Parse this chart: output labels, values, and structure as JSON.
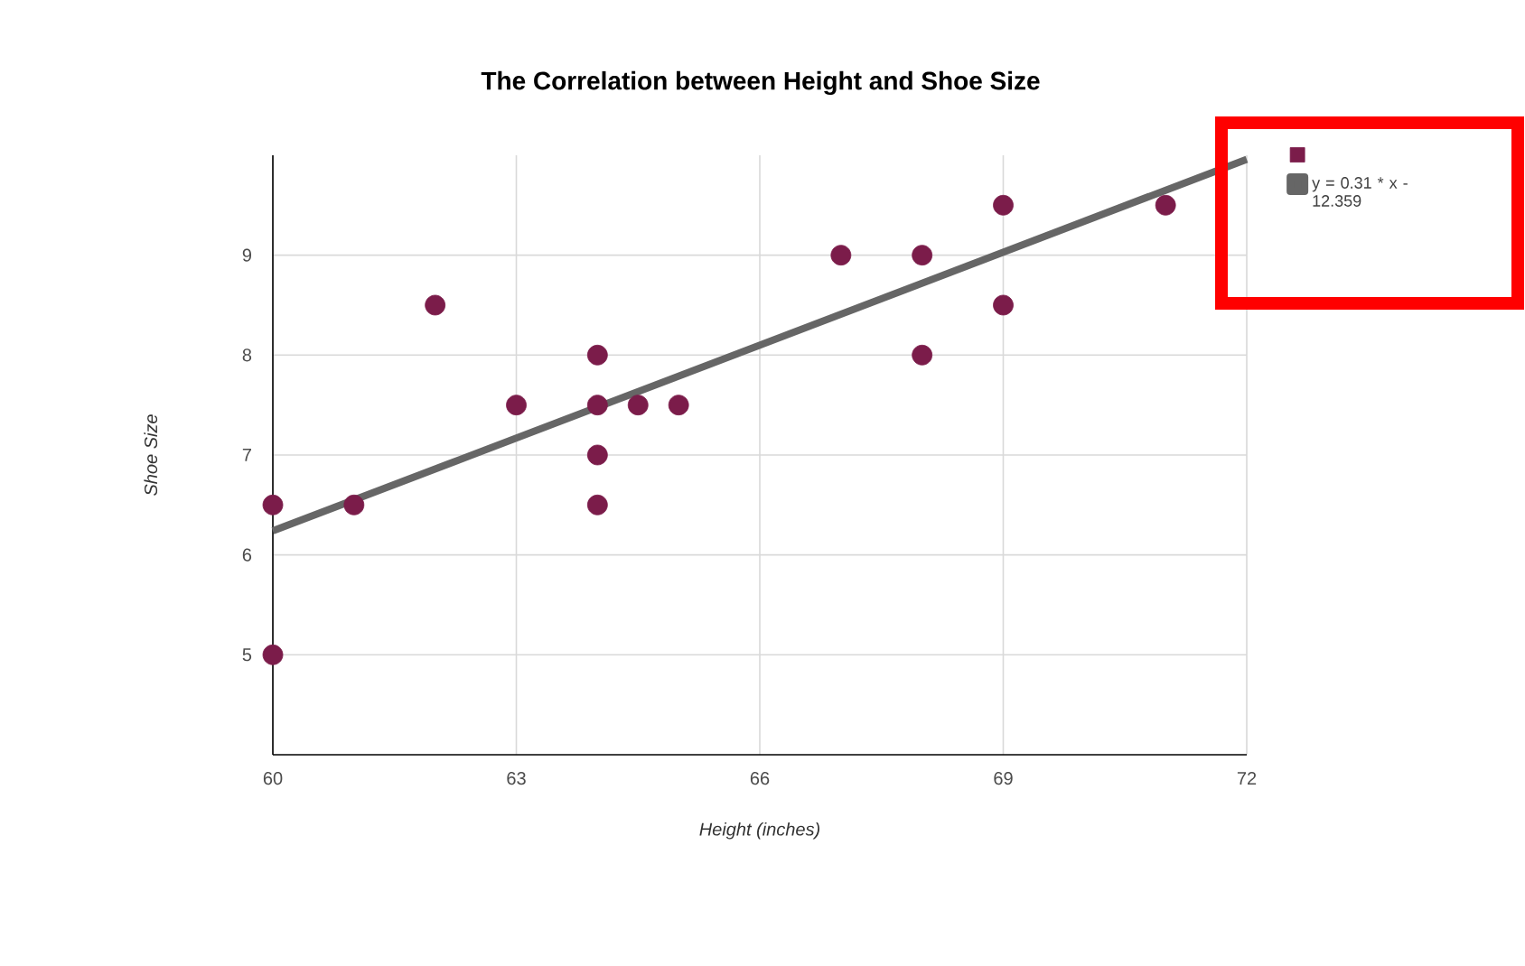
{
  "chart_data": {
    "type": "scatter",
    "title": "The Correlation between Height and Shoe Size",
    "xlabel": "Height (inches)",
    "ylabel": "Shoe Size",
    "xlim": [
      60,
      72
    ],
    "xticks": [
      60,
      63,
      66,
      69,
      72
    ],
    "ylim": [
      4,
      10
    ],
    "yticks": [
      5,
      6,
      7,
      8,
      9
    ],
    "grid": true,
    "legend": "top right",
    "series": [
      {
        "color": "#7b1c4a",
        "marker": "circle",
        "x": [
          60,
          60,
          61,
          62,
          63,
          64,
          64,
          64,
          64,
          64.5,
          65,
          67,
          68,
          68,
          69,
          69,
          71
        ],
        "values": [
          6.5,
          5,
          6.5,
          8.5,
          7.5,
          8,
          7.5,
          7,
          6.5,
          7.5,
          7.5,
          9,
          9,
          8,
          9.5,
          8.5,
          9.5
        ]
      },
      {
        "type": "line",
        "name": "y = 0.31 * x - 12.359",
        "color": "#666666",
        "marker": "none",
        "x": [
          60,
          72
        ],
        "values": [
          6.24,
          9.96
        ]
      }
    ]
  }
}
